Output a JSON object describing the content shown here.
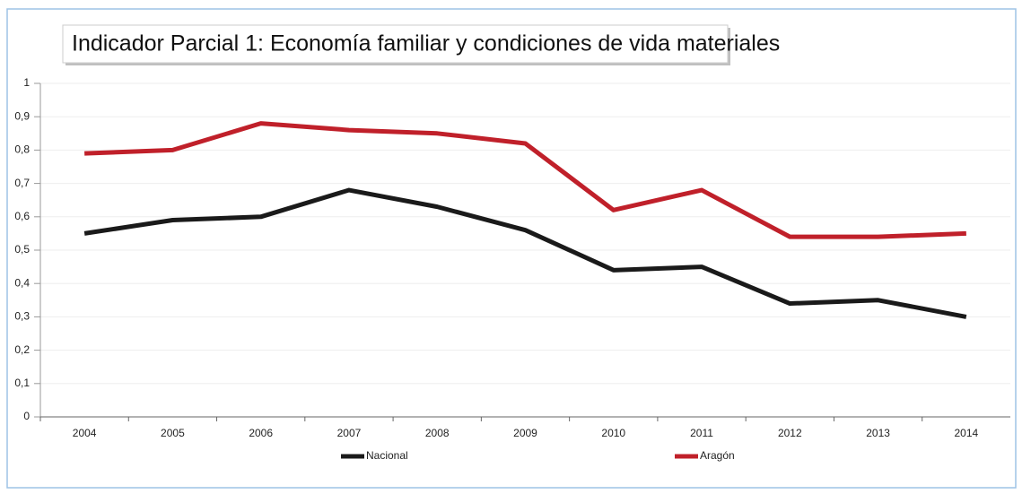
{
  "chart_data": {
    "type": "line",
    "title": "Indicador Parcial 1: Economía familiar y condiciones de vida materiales",
    "categories": [
      "2004",
      "2005",
      "2006",
      "2007",
      "2008",
      "2009",
      "2010",
      "2011",
      "2012",
      "2013",
      "2014"
    ],
    "series": [
      {
        "name": "Nacional",
        "color": "#1a1a1a",
        "values": [
          0.55,
          0.59,
          0.6,
          0.68,
          0.63,
          0.56,
          0.44,
          0.45,
          0.34,
          0.35,
          0.3
        ]
      },
      {
        "name": "Aragón",
        "color": "#c0202a",
        "values": [
          0.79,
          0.8,
          0.88,
          0.86,
          0.85,
          0.82,
          0.62,
          0.68,
          0.54,
          0.54,
          0.55
        ]
      }
    ],
    "ylim": [
      0,
      1
    ],
    "yticks": [
      0,
      {
        "value": 0.1,
        "label": "0,1"
      },
      {
        "value": 0.2,
        "label": "0,2"
      },
      {
        "value": 0.3,
        "label": "0,3"
      },
      {
        "value": 0.4,
        "label": "0,4"
      },
      {
        "value": 0.5,
        "label": "0,5"
      },
      {
        "value": 0.6,
        "label": "0,6"
      },
      {
        "value": 0.7,
        "label": "0,7"
      },
      {
        "value": 0.8,
        "label": "0,8"
      },
      {
        "value": 0.9,
        "label": "0,9"
      },
      1
    ],
    "grid": true,
    "legend": "bottom"
  }
}
